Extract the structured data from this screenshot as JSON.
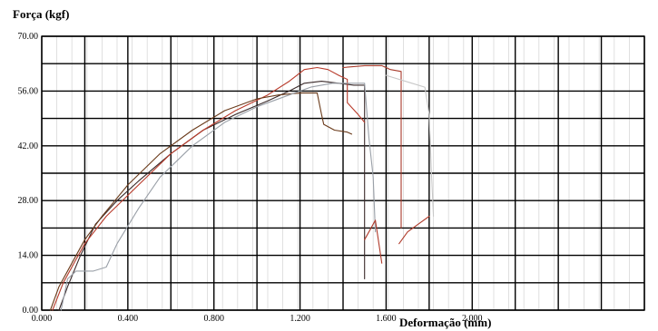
{
  "chart_data": {
    "type": "line",
    "ylabel": "Força (kgf)",
    "xlabel": "Deformação (mm)",
    "xlim": [
      0,
      2.8
    ],
    "ylim": [
      0,
      70
    ],
    "x_ticks": [
      0,
      0.4,
      0.8,
      1.2,
      1.6,
      2.0
    ],
    "x_tick_labels": [
      "0.000",
      "0.400",
      "0.800",
      "1.200",
      "1.600",
      "2.000"
    ],
    "y_ticks": [
      0,
      14,
      28,
      42,
      56,
      70
    ],
    "y_tick_labels": [
      "0.00",
      "14.00",
      "28.00",
      "42.00",
      "56.00",
      "70.00"
    ],
    "grid": true,
    "series": [
      {
        "color": "#3a2a2a",
        "points": [
          [
            0.08,
            0
          ],
          [
            0.12,
            6
          ],
          [
            0.18,
            14
          ],
          [
            0.25,
            22
          ],
          [
            0.35,
            28
          ],
          [
            0.45,
            33
          ],
          [
            0.6,
            40
          ],
          [
            0.75,
            46
          ],
          [
            0.9,
            50
          ],
          [
            1.05,
            53.5
          ],
          [
            1.15,
            56
          ],
          [
            1.22,
            58
          ],
          [
            1.3,
            58.5
          ],
          [
            1.38,
            58
          ],
          [
            1.45,
            57.5
          ],
          [
            1.5,
            57.5
          ],
          [
            1.5,
            8
          ]
        ]
      },
      {
        "color": "#b83a2a",
        "points": [
          [
            0.05,
            0
          ],
          [
            0.1,
            7
          ],
          [
            0.16,
            13
          ],
          [
            0.2,
            17
          ],
          [
            0.3,
            24
          ],
          [
            0.45,
            32
          ],
          [
            0.6,
            40
          ],
          [
            0.75,
            46
          ],
          [
            0.9,
            51
          ],
          [
            1.05,
            55
          ],
          [
            1.15,
            58.5
          ],
          [
            1.22,
            61.5
          ],
          [
            1.28,
            62
          ],
          [
            1.33,
            61.5
          ],
          [
            1.38,
            60
          ],
          [
            1.42,
            59
          ],
          [
            1.42,
            53
          ],
          [
            1.47,
            50
          ],
          [
            1.5,
            48
          ]
        ]
      },
      {
        "color": "#6a3a1a",
        "points": [
          [
            0.04,
            0
          ],
          [
            0.08,
            6
          ],
          [
            0.14,
            12
          ],
          [
            0.2,
            18
          ],
          [
            0.28,
            24
          ],
          [
            0.4,
            32
          ],
          [
            0.55,
            40
          ],
          [
            0.7,
            46
          ],
          [
            0.85,
            51
          ],
          [
            1.0,
            54
          ],
          [
            1.1,
            55
          ],
          [
            1.2,
            55.5
          ],
          [
            1.28,
            55.5
          ],
          [
            1.3,
            50
          ],
          [
            1.31,
            47.5
          ],
          [
            1.36,
            46
          ],
          [
            1.42,
            45.5
          ],
          [
            1.44,
            45
          ]
        ]
      },
      {
        "color": "#9aa0a8",
        "points": [
          [
            0.09,
            0
          ],
          [
            0.12,
            8
          ],
          [
            0.16,
            10
          ],
          [
            0.24,
            10
          ],
          [
            0.3,
            11
          ],
          [
            0.35,
            17
          ],
          [
            0.45,
            26
          ],
          [
            0.55,
            34
          ],
          [
            0.7,
            42
          ],
          [
            0.85,
            48
          ],
          [
            1.0,
            52
          ],
          [
            1.15,
            55
          ],
          [
            1.25,
            57
          ],
          [
            1.35,
            58
          ],
          [
            1.45,
            58
          ],
          [
            1.5,
            58
          ],
          [
            1.52,
            44
          ],
          [
            1.54,
            34
          ],
          [
            1.55,
            20
          ]
        ]
      },
      {
        "color": "#a83a2a",
        "points": [
          [
            1.4,
            62
          ],
          [
            1.5,
            62.5
          ],
          [
            1.58,
            62.5
          ],
          [
            1.62,
            61.5
          ],
          [
            1.67,
            61
          ],
          [
            1.67,
            21
          ]
        ]
      },
      {
        "color": "#c8c8c8",
        "points": [
          [
            1.6,
            60
          ],
          [
            1.72,
            58
          ],
          [
            1.78,
            57
          ],
          [
            1.8,
            50
          ],
          [
            1.81,
            36
          ],
          [
            1.82,
            24
          ]
        ]
      },
      {
        "color": "#b03a2a",
        "points": [
          [
            1.66,
            17
          ],
          [
            1.7,
            20
          ],
          [
            1.75,
            22
          ],
          [
            1.8,
            24
          ]
        ]
      },
      {
        "color": "#b03a2a",
        "points": [
          [
            1.5,
            18
          ],
          [
            1.52,
            20
          ],
          [
            1.55,
            23
          ],
          [
            1.58,
            12
          ]
        ]
      }
    ]
  }
}
